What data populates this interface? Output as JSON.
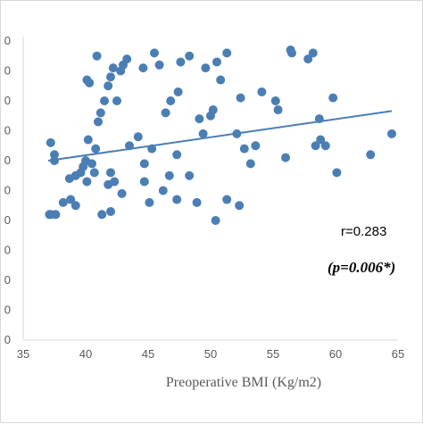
{
  "chart_data": {
    "type": "scatter",
    "title": "",
    "xlabel": "Preoperative BMI (Kg/m2)",
    "ylabel": "",
    "xlim": [
      35,
      65
    ],
    "xticks": [
      "35",
      "40",
      "45",
      "50",
      "55",
      "60",
      "65"
    ],
    "ylim": [
      0,
      10
    ],
    "y_tick_count": 11,
    "grid": false,
    "legend": "none",
    "marker_color": "#4a7eb4",
    "trendline_color": "#4a7eb4",
    "annotations": {
      "r": "r=0.283",
      "p": "(p=0.006*)"
    },
    "trendline": {
      "x": [
        37.0,
        64.5
      ],
      "y": [
        6.0,
        7.66
      ]
    },
    "points": [
      [
        37.2,
        6.6
      ],
      [
        37.5,
        6.2
      ],
      [
        37.5,
        6.0
      ],
      [
        37.1,
        4.2
      ],
      [
        37.2,
        4.2
      ],
      [
        37.6,
        4.2
      ],
      [
        38.2,
        4.6
      ],
      [
        38.8,
        4.7
      ],
      [
        39.2,
        5.5
      ],
      [
        39.6,
        5.6
      ],
      [
        39.8,
        5.8
      ],
      [
        40.0,
        6.0
      ],
      [
        40.2,
        6.7
      ],
      [
        40.5,
        5.9
      ],
      [
        40.8,
        6.4
      ],
      [
        41.0,
        7.3
      ],
      [
        41.2,
        7.6
      ],
      [
        41.5,
        8.0
      ],
      [
        41.8,
        8.5
      ],
      [
        42.0,
        8.8
      ],
      [
        42.2,
        9.1
      ],
      [
        42.5,
        8.0
      ],
      [
        42.8,
        9.0
      ],
      [
        43.0,
        9.2
      ],
      [
        43.3,
        9.4
      ],
      [
        40.3,
        8.6
      ],
      [
        40.1,
        8.7
      ],
      [
        40.9,
        9.5
      ],
      [
        41.8,
        5.2
      ],
      [
        42.0,
        5.6
      ],
      [
        42.3,
        5.3
      ],
      [
        42.9,
        4.9
      ],
      [
        41.3,
        4.2
      ],
      [
        40.1,
        5.3
      ],
      [
        39.2,
        4.5
      ],
      [
        40.7,
        5.6
      ],
      [
        43.5,
        6.5
      ],
      [
        44.6,
        9.1
      ],
      [
        45.5,
        9.6
      ],
      [
        45.9,
        9.2
      ],
      [
        46.4,
        7.6
      ],
      [
        46.8,
        8.0
      ],
      [
        47.4,
        8.3
      ],
      [
        47.6,
        9.3
      ],
      [
        48.3,
        9.5
      ],
      [
        46.2,
        5.0
      ],
      [
        46.7,
        5.5
      ],
      [
        47.3,
        4.7
      ],
      [
        48.3,
        5.5
      ],
      [
        48.9,
        4.6
      ],
      [
        49.4,
        6.9
      ],
      [
        49.6,
        9.1
      ],
      [
        50.0,
        7.5
      ],
      [
        50.2,
        7.7
      ],
      [
        50.5,
        9.3
      ],
      [
        50.8,
        8.7
      ],
      [
        50.4,
        4.0
      ],
      [
        51.3,
        4.7
      ],
      [
        52.1,
        6.9
      ],
      [
        52.4,
        8.1
      ],
      [
        52.7,
        6.4
      ],
      [
        53.2,
        5.9
      ],
      [
        53.6,
        6.5
      ],
      [
        54.1,
        8.3
      ],
      [
        55.2,
        8.0
      ],
      [
        55.4,
        7.7
      ],
      [
        56.0,
        6.1
      ],
      [
        56.4,
        9.7
      ],
      [
        56.5,
        9.6
      ],
      [
        57.8,
        9.4
      ],
      [
        58.2,
        9.6
      ],
      [
        58.4,
        6.5
      ],
      [
        58.7,
        7.4
      ],
      [
        58.8,
        6.7
      ],
      [
        59.2,
        6.5
      ],
      [
        59.8,
        8.1
      ],
      [
        60.1,
        5.6
      ],
      [
        62.8,
        6.2
      ],
      [
        64.5,
        6.9
      ],
      [
        44.2,
        6.8
      ],
      [
        44.7,
        5.9
      ],
      [
        45.1,
        4.6
      ],
      [
        49.1,
        7.4
      ],
      [
        45.3,
        6.4
      ],
      [
        51.3,
        9.6
      ],
      [
        52.3,
        4.5
      ],
      [
        38.7,
        5.4
      ],
      [
        42.0,
        4.3
      ],
      [
        44.7,
        5.3
      ],
      [
        47.3,
        6.2
      ]
    ]
  }
}
